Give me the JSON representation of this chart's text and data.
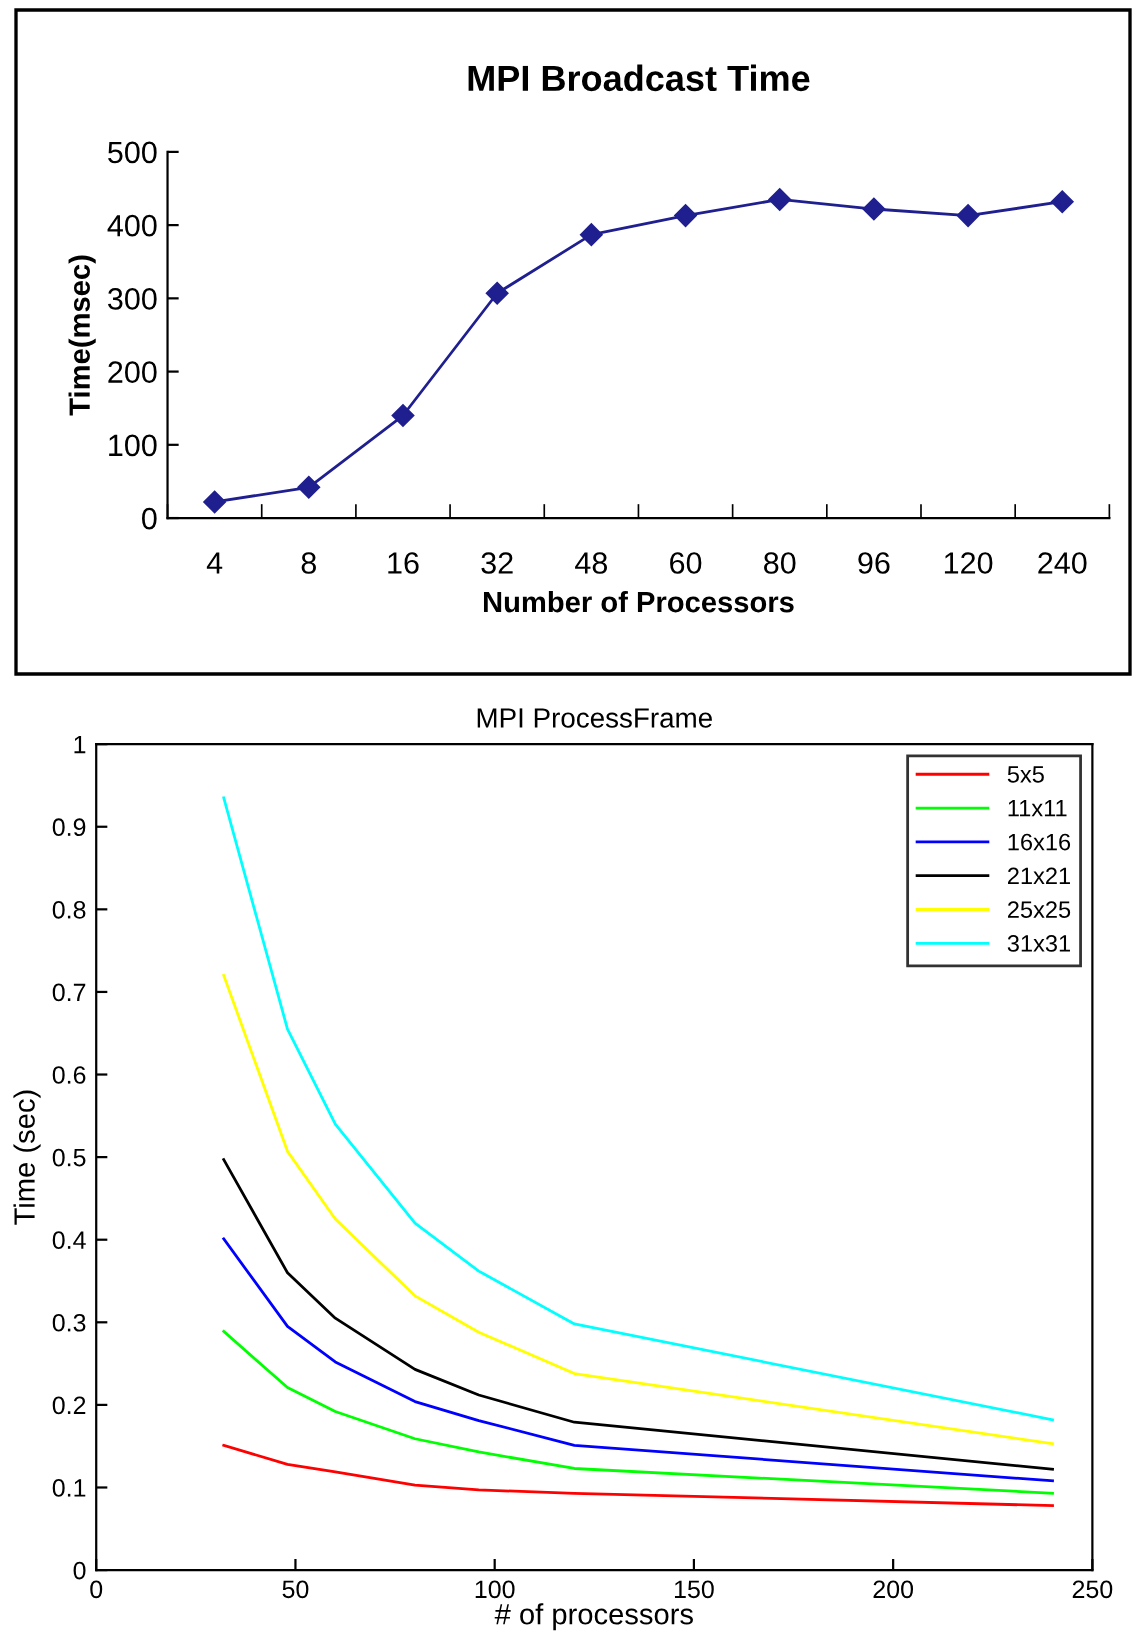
{
  "chart_data": [
    {
      "type": "line",
      "title": "MPI Broadcast Time",
      "xlabel": "Number of Processors",
      "ylabel": "Time(msec)",
      "categories": [
        "4",
        "8",
        "16",
        "32",
        "48",
        "60",
        "80",
        "96",
        "120",
        "240"
      ],
      "series": [
        {
          "color": "#1f1f8f",
          "values": [
            22,
            42,
            140,
            307,
            387,
            413,
            435,
            422,
            413,
            432
          ]
        }
      ],
      "ylim": [
        0,
        500
      ],
      "yticks": [
        0,
        100,
        200,
        300,
        400,
        500
      ],
      "marker": "diamond",
      "grid": false,
      "legend": false
    },
    {
      "type": "line",
      "title": "MPI ProcessFrame",
      "xlabel": "# of processors",
      "ylabel": "Time (sec)",
      "x": [
        32,
        48,
        60,
        80,
        96,
        120,
        240
      ],
      "series": [
        {
          "name": "5x5",
          "color": "#ff0000",
          "values": [
            0.151,
            0.128,
            0.119,
            0.103,
            0.097,
            0.093,
            0.078
          ]
        },
        {
          "name": "11x11",
          "color": "#00ff00",
          "values": [
            0.289,
            0.221,
            0.192,
            0.159,
            0.143,
            0.123,
            0.093
          ]
        },
        {
          "name": "16x16",
          "color": "#0000ff",
          "values": [
            0.401,
            0.295,
            0.252,
            0.204,
            0.181,
            0.151,
            0.108
          ]
        },
        {
          "name": "21x21",
          "color": "#000000",
          "values": [
            0.497,
            0.36,
            0.305,
            0.243,
            0.212,
            0.179,
            0.122
          ]
        },
        {
          "name": "25x25",
          "color": "#ffff00",
          "values": [
            0.72,
            0.507,
            0.425,
            0.332,
            0.288,
            0.238,
            0.153
          ]
        },
        {
          "name": "31x31",
          "color": "#00ffff",
          "values": [
            0.935,
            0.655,
            0.54,
            0.42,
            0.362,
            0.298,
            0.182
          ]
        }
      ],
      "xlim": [
        0,
        250
      ],
      "xticks": [
        0,
        50,
        100,
        150,
        200,
        250
      ],
      "ylim": [
        0,
        1
      ],
      "yticks": [
        0,
        0.1,
        0.2,
        0.3,
        0.4,
        0.5,
        0.6,
        0.7,
        0.8,
        0.9,
        1
      ],
      "grid": false,
      "legend": "top right"
    }
  ]
}
